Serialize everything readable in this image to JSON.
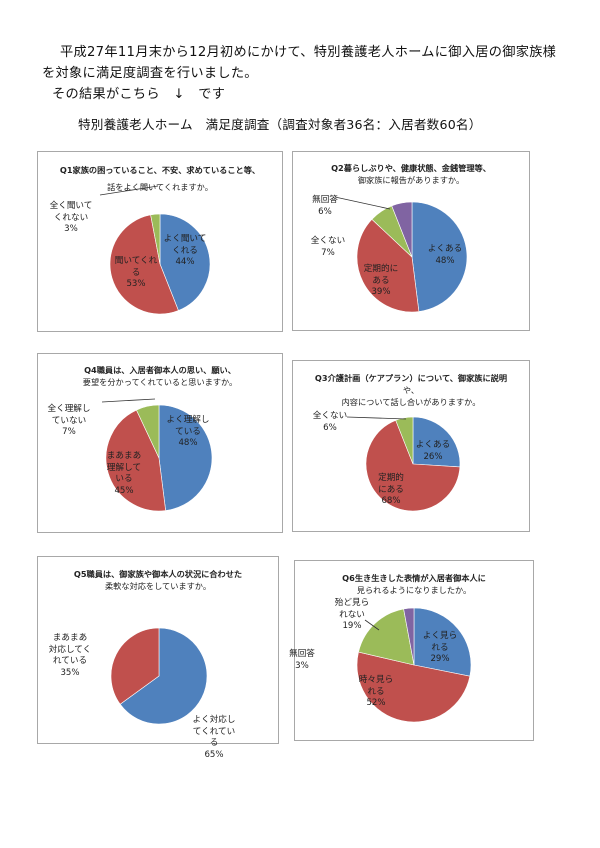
{
  "intro": {
    "line1": "平成27年11月末から12月初めにかけて、特別養護老人ホームに御入居の御家族様",
    "line2": "を対象に満足度調査を行いました。",
    "line3": "その結果がこちら　↓　です"
  },
  "subtitle": "特別養護老人ホーム　満足度調査（調査対象者36名：入居者数60名）",
  "colors": {
    "blue": "#4F81BD",
    "red": "#C0504D",
    "green": "#9BBB59",
    "purple": "#8064A2"
  },
  "chart_data": [
    {
      "id": "q1",
      "type": "pie",
      "title": "Q1家族の困っていること、不安、求めていること等、話をよく聞いてくれますか。",
      "title_lines": [
        "Q1家族の困っていること、不安、求めていること等、",
        "話をよく聞いてくれますか。"
      ],
      "slices": [
        {
          "label": "よく聞いてくれる",
          "value": 44,
          "color": "#4F81BD"
        },
        {
          "label": "聞いてくれる",
          "value": 53,
          "color": "#C0504D"
        },
        {
          "label": "全く聞いてくれない",
          "value": 3,
          "color": "#9BBB59"
        }
      ],
      "labels": [
        {
          "lines": [
            "よく聞いて",
            "くれる",
            "44%"
          ]
        },
        {
          "lines": [
            "聞いてくれ",
            "る",
            "53%"
          ]
        },
        {
          "lines": [
            "全く聞いて",
            "くれない",
            "3%"
          ]
        }
      ]
    },
    {
      "id": "q2",
      "type": "pie",
      "title": "Q2暮らしぶりや、健康状態、金銭管理等、御家族に報告がありますか。",
      "title_lines": [
        "Q2暮らしぶりや、健康状態、金銭管理等、",
        "御家族に報告がありますか。"
      ],
      "slices": [
        {
          "label": "よくある",
          "value": 48,
          "color": "#4F81BD"
        },
        {
          "label": "定期的にある",
          "value": 39,
          "color": "#C0504D"
        },
        {
          "label": "全くない",
          "value": 7,
          "color": "#9BBB59"
        },
        {
          "label": "無回答",
          "value": 6,
          "color": "#8064A2"
        }
      ],
      "labels": [
        {
          "lines": [
            "よくある",
            "48%"
          ]
        },
        {
          "lines": [
            "定期的に",
            "ある",
            "39%"
          ]
        },
        {
          "lines": [
            "全くない",
            "7%"
          ]
        },
        {
          "lines": [
            "無回答",
            "6%"
          ]
        }
      ]
    },
    {
      "id": "q4",
      "type": "pie",
      "title": "Q4職員は、入居者御本人の思い、願い、要望を分かってくれていると思いますか。",
      "title_lines": [
        "Q4職員は、入居者御本人の思い、願い、",
        "要望を分かってくれていると思いますか。"
      ],
      "slices": [
        {
          "label": "よく理解している",
          "value": 48,
          "color": "#4F81BD"
        },
        {
          "label": "まあまあ理解している",
          "value": 45,
          "color": "#C0504D"
        },
        {
          "label": "全く理解していない",
          "value": 7,
          "color": "#9BBB59"
        }
      ],
      "labels": [
        {
          "lines": [
            "よく理解し",
            "ている",
            "48%"
          ]
        },
        {
          "lines": [
            "まあまあ",
            "理解して",
            "いる",
            "45%"
          ]
        },
        {
          "lines": [
            "全く理解し",
            "ていない",
            "7%"
          ]
        }
      ]
    },
    {
      "id": "q3",
      "type": "pie",
      "title": "Q3介護計画（ケアプラン）について、御家族に説明や、内容について話し合いがありますか。",
      "title_lines": [
        "Q3介護計画（ケアプラン）について、御家族に説明",
        "や、",
        "内容について話し合いがありますか。"
      ],
      "slices": [
        {
          "label": "よくある",
          "value": 26,
          "color": "#4F81BD"
        },
        {
          "label": "定期的にある",
          "value": 68,
          "color": "#C0504D"
        },
        {
          "label": "全くない",
          "value": 6,
          "color": "#9BBB59"
        }
      ],
      "labels": [
        {
          "lines": [
            "よくある",
            "26%"
          ]
        },
        {
          "lines": [
            "定期的",
            "にある",
            "68%"
          ]
        },
        {
          "lines": [
            "全くない",
            "6%"
          ]
        }
      ]
    },
    {
      "id": "q5",
      "type": "pie",
      "title": "Q5職員は、御家族や御本人の状況に合わせた柔軟な対応をしていますか。",
      "title_lines": [
        "Q5職員は、御家族や御本人の状況に合わせた",
        "柔軟な対応をしていますか。"
      ],
      "slices": [
        {
          "label": "よく対応してくれている",
          "value": 65,
          "color": "#4F81BD"
        },
        {
          "label": "まあまあ対応してくれている",
          "value": 35,
          "color": "#C0504D"
        }
      ],
      "labels": [
        {
          "lines": [
            "よく対応し",
            "てくれてい",
            "る",
            "65%"
          ]
        },
        {
          "lines": [
            "まあまあ",
            "対応してく",
            "れている",
            "35%"
          ]
        }
      ]
    },
    {
      "id": "q6",
      "type": "pie",
      "title": "Q6生き生きした表情が入居者御本人に見られるようになりましたか。",
      "title_lines": [
        "Q6生き生きした表情が入居者御本人に",
        "見られるようになりましたか。"
      ],
      "slices": [
        {
          "label": "よく見られる",
          "value": 29,
          "color": "#4F81BD"
        },
        {
          "label": "時々見られる",
          "value": 52,
          "color": "#C0504D"
        },
        {
          "label": "殆ど見られない",
          "value": 19,
          "color": "#9BBB59"
        },
        {
          "label": "無回答",
          "value": 3,
          "color": "#8064A2"
        }
      ],
      "labels": [
        {
          "lines": [
            "よく見ら",
            "れる",
            "29%"
          ]
        },
        {
          "lines": [
            "時々見ら",
            "れる",
            "52%"
          ]
        },
        {
          "lines": [
            "殆ど見ら",
            "れない",
            "19%"
          ]
        },
        {
          "lines": [
            "無回答",
            "3%"
          ]
        }
      ]
    }
  ]
}
